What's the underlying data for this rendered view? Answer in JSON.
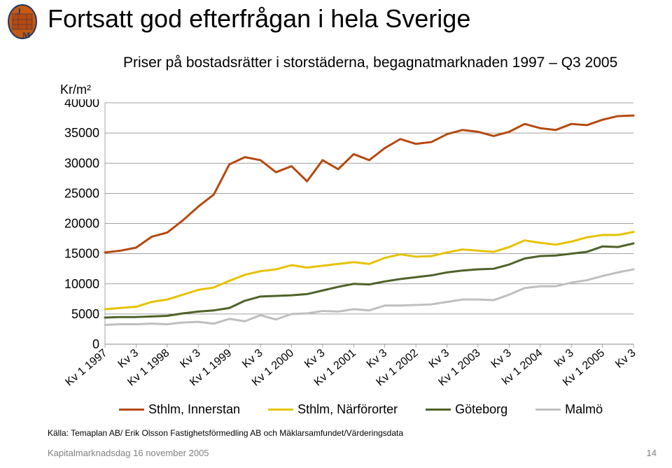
{
  "logo_text": "JM",
  "title": "Fortsatt god efterfrågan i hela Sverige",
  "subtitle": "Priser på bostadsrätter i storstäderna, begagnatmarknaden 1997 – Q3 2005",
  "y_axis_label": "Kr/m²",
  "source": "Källa: Temaplan AB/ Erik Olsson Fastighetsförmedling AB och Mäklarsamfundet/Värderingsdata",
  "footer": "Kapitalmarknadsdag 16 november 2005",
  "page_number": "14",
  "chart": {
    "type": "line",
    "background_color": "#ffffff",
    "grid_color": "#808080",
    "axis_color": "#808080",
    "y": {
      "ticks": [
        0,
        5000,
        10000,
        15000,
        20000,
        25000,
        30000,
        35000,
        40000
      ],
      "min": 0,
      "max": 40000,
      "tick_fontsize": 18,
      "tick_color": "#000000"
    },
    "x": {
      "labels": [
        "Kv 1 1997",
        "Kv 3",
        "Kv 1 1998",
        "Kv 3",
        "Kv 1 1999",
        "Kv 3",
        "Kv 1 2000",
        "Kv 3",
        "Kv 1 2001",
        "Kv 3",
        "Kv 1 2002",
        "Kv 3",
        "Kv 1 2003",
        "Kv 3",
        "kv 1 2004",
        "kv 3",
        "Kv 1 2005",
        "Kv 3"
      ],
      "tick_fontsize": 16,
      "tick_color": "#000000",
      "rotation": -40
    },
    "series": [
      {
        "name": "Sthlm, Innerstan",
        "color": "#b5490f",
        "stroke_width": 3,
        "values": [
          15200,
          15500,
          16000,
          17800,
          18500,
          20500,
          22800,
          24800,
          29800,
          31000,
          30500,
          28500,
          29500,
          27000,
          30500,
          29000,
          31500,
          30500,
          32500,
          34000,
          33200,
          33500,
          34800,
          35500,
          35200,
          34500,
          35200,
          36500,
          35800,
          35500,
          36500,
          36300,
          37200,
          37800,
          37900
        ]
      },
      {
        "name": "Sthlm, Närförorter",
        "color": "#e6c200",
        "stroke_width": 3,
        "values": [
          5800,
          6000,
          6200,
          7000,
          7400,
          8200,
          9000,
          9400,
          10500,
          11500,
          12100,
          12400,
          13100,
          12700,
          13000,
          13300,
          13600,
          13300,
          14300,
          14900,
          14500,
          14600,
          15200,
          15700,
          15500,
          15300,
          16100,
          17200,
          16800,
          16500,
          17000,
          17700,
          18100,
          18100,
          18600
        ]
      },
      {
        "name": "Göteborg",
        "color": "#4f6228",
        "stroke_width": 3,
        "values": [
          4400,
          4500,
          4500,
          4600,
          4700,
          5100,
          5400,
          5600,
          6000,
          7200,
          7900,
          8000,
          8100,
          8300,
          8900,
          9500,
          10000,
          9900,
          10400,
          10800,
          11100,
          11400,
          11900,
          12200,
          12400,
          12500,
          13200,
          14200,
          14600,
          14700,
          15000,
          15300,
          16200,
          16100,
          16700
        ]
      },
      {
        "name": "Malmö",
        "color": "#bfbfbf",
        "stroke_width": 3,
        "values": [
          3200,
          3300,
          3300,
          3400,
          3300,
          3600,
          3700,
          3400,
          4200,
          3800,
          4800,
          4100,
          5000,
          5100,
          5500,
          5400,
          5800,
          5600,
          6400,
          6400,
          6500,
          6600,
          7000,
          7400,
          7400,
          7300,
          8200,
          9300,
          9600,
          9600,
          10200,
          10600,
          11300,
          11900,
          12400
        ]
      }
    ],
    "legend": [
      {
        "label": "Sthlm, Innerstan",
        "color": "#b5490f",
        "width": 3
      },
      {
        "label": "Sthlm, Närförorter",
        "color": "#e6c200",
        "width": 3
      },
      {
        "label": "Göteborg",
        "color": "#4f6228",
        "width": 3
      },
      {
        "label": "Malmö",
        "color": "#bfbfbf",
        "width": 3
      }
    ]
  }
}
